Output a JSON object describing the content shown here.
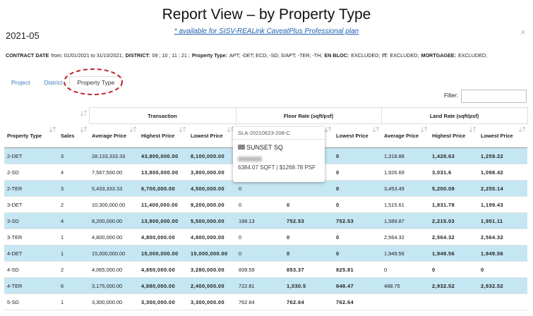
{
  "header": {
    "title": "Report View – by Property Type",
    "subtitle": "* available for SISV-REALink CaveatPlus Professional plan",
    "period": "2021-05",
    "close": "×"
  },
  "criteria": [
    {
      "label": "CONTRACT DATE",
      "value": "from: 01/01/2021 to 31/10/2021;"
    },
    {
      "label": "DISTRICT:",
      "value": "09 ; 10 ; 11 ; 21 ;"
    },
    {
      "label": "Property Type:",
      "value": "APT; -DET; ECD; -SD; S/APT; -TER; -TH;"
    },
    {
      "label": "EN BLOC:",
      "value": "EXCLUDED;"
    },
    {
      "label": "IT:",
      "value": "EXCLUDED;"
    },
    {
      "label": "MORTGAGEE:",
      "value": "EXCLUDED;"
    }
  ],
  "tabs": [
    "Project",
    "District",
    "Property Type"
  ],
  "active_tab": 2,
  "filter_label": "Filter:",
  "table": {
    "groups": [
      "Transaction",
      "Floor Rate (sqft/psf)",
      "Land Rate (sqft/psf)"
    ],
    "columns": [
      "Property Type",
      "Sales",
      "Average Price",
      "Highest Price",
      "Lowest Price",
      "Average Price",
      "Highest Price",
      "Lowest Price",
      "Average Price",
      "Highest Price",
      "Lowest Price"
    ],
    "rows": [
      [
        "2-DET",
        "3",
        "28,133,333.33",
        "43,800,000.00",
        "8,100,000.00",
        null,
        null,
        "0",
        "1,318.88",
        "1,428.63",
        "1,259.22"
      ],
      [
        "2-SD",
        "4",
        "7,567,500.00",
        "13,800,000.00",
        "3,800,000.00",
        null,
        null,
        "0",
        "1,926.69",
        "3,031.6",
        "1,098.42"
      ],
      [
        "2-TER",
        "3",
        "5,433,333.33",
        "6,700,000.00",
        "4,500,000.00",
        "0",
        null,
        "0",
        "3,453.49",
        "5,200.09",
        "2,255.14"
      ],
      [
        "3-DET",
        "2",
        "10,300,000.00",
        "11,400,000.00",
        "9,200,000.00",
        "0",
        "0",
        "0",
        "1,515.61",
        "1,831.78",
        "1,199.43"
      ],
      [
        "3-SD",
        "4",
        "8,200,000.00",
        "13,800,000.00",
        "5,500,000.00",
        "188.13",
        "752.53",
        "752.53",
        "1,589.87",
        "2,215.03",
        "1,951.11"
      ],
      [
        "3-TER",
        "1",
        "4,800,000.00",
        "4,800,000.00",
        "4,800,000.00",
        "0",
        "0",
        "0",
        "2,564.32",
        "2,564.32",
        "2,564.32"
      ],
      [
        "4-DET",
        "1",
        "15,000,000.00",
        "15,000,000.00",
        "15,000,000.00",
        "0",
        "0",
        "0",
        "1,949.56",
        "1,949.56",
        "1,949.56"
      ],
      [
        "4-SD",
        "2",
        "4,065,000.00",
        "4,850,000.00",
        "3,280,000.00",
        "839.59",
        "853.37",
        "825.81",
        "0",
        "0",
        "0"
      ],
      [
        "4-TER",
        "6",
        "3,175,000.00",
        "4,880,000.00",
        "2,400,000.00",
        "722.81",
        "1,030.5",
        "648.47",
        "488.75",
        "2,932.52",
        "2,932.52"
      ],
      [
        "5-SD",
        "1",
        "3,300,000.00",
        "3,300,000.00",
        "3,300,000.00",
        "762.64",
        "762.64",
        "762.64",
        null,
        null,
        null
      ]
    ]
  },
  "tooltip": {
    "id": "SLA-20210623-208-C",
    "name": "SUNSET SQ",
    "area": "6384.07 SQFT | $1268.78 PSF"
  }
}
